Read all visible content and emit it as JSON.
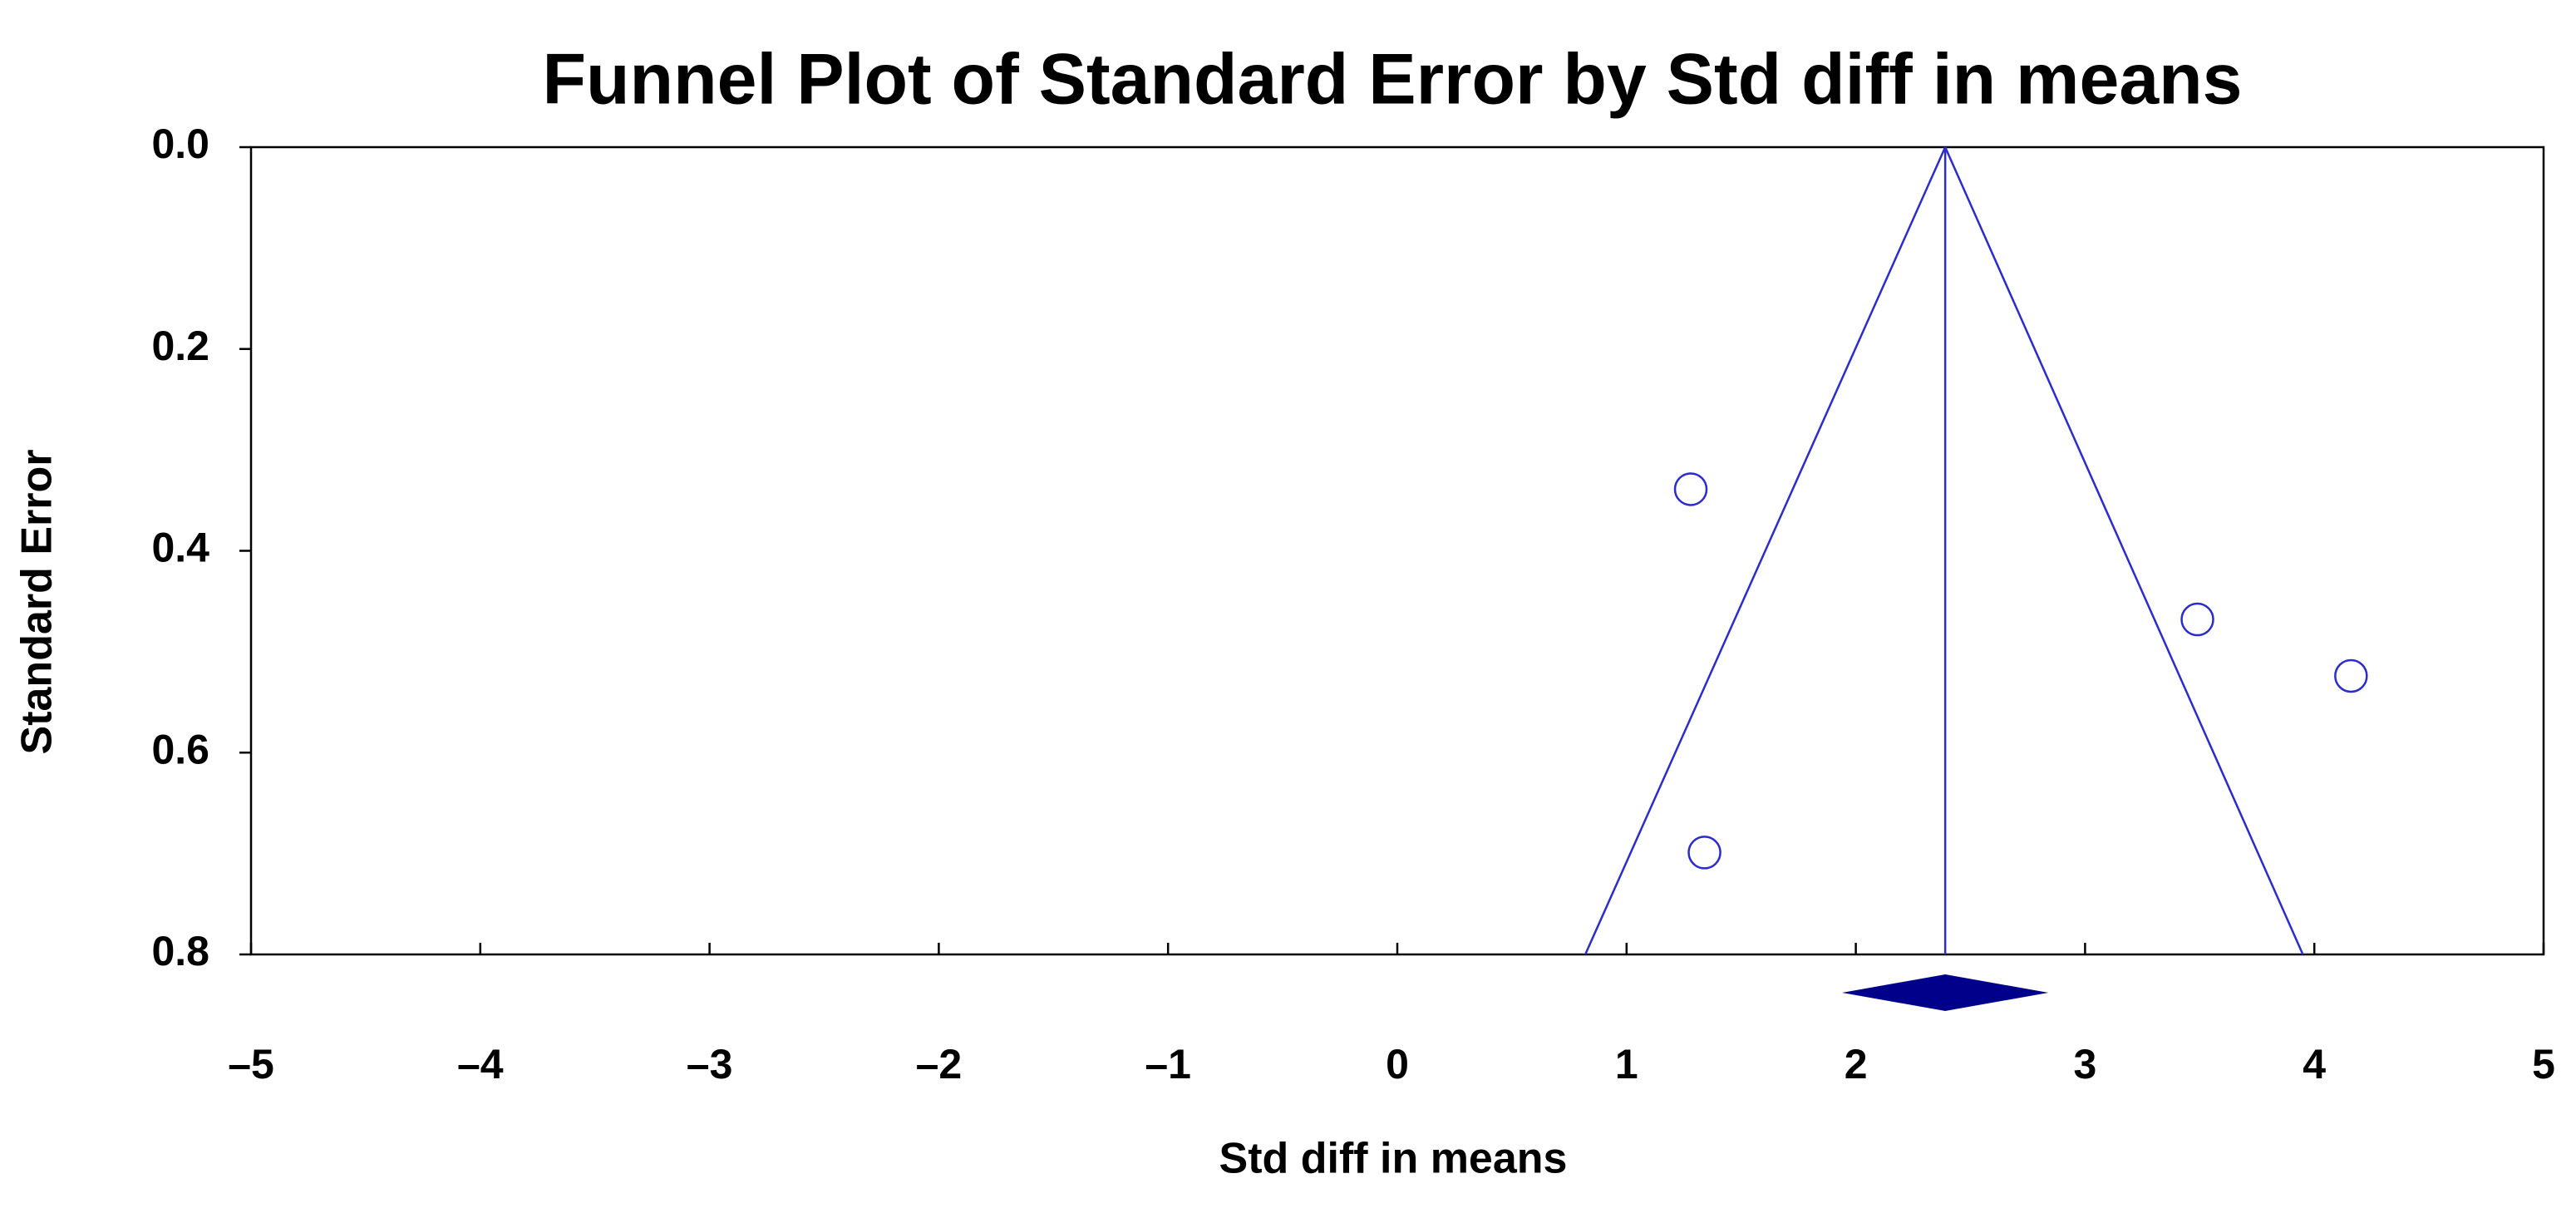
{
  "chart_data": {
    "type": "scatter",
    "title": "Funnel Plot of Standard Error by Std diff in means",
    "x_label": "Std diff in means",
    "y_label": "Standard Error",
    "x": [
      1.28,
      3.49,
      4.16,
      1.34
    ],
    "values": [
      0.339,
      0.468,
      0.524,
      0.699
    ],
    "color": "#2b2bd0",
    "summary": {
      "estimate": 2.39,
      "ci": [
        1.94,
        2.84
      ],
      "color": "#00008b"
    },
    "funnel_limits": [
      0.82,
      3.95
    ],
    "xlim": [
      -5,
      5
    ],
    "xticks": [
      {
        "value": -5,
        "label": "–5"
      },
      {
        "value": -4,
        "label": "–4"
      },
      {
        "value": -3,
        "label": "–3"
      },
      {
        "value": -2,
        "label": "–2"
      },
      {
        "value": -1,
        "label": "–1"
      },
      0,
      1,
      2,
      3,
      4,
      5
    ],
    "ylim": [
      0,
      0.8
    ],
    "yticks": [
      {
        "value": 0,
        "label": "0.0"
      },
      0.2,
      0.4,
      0.6,
      0.8
    ],
    "y_inverted": true
  }
}
